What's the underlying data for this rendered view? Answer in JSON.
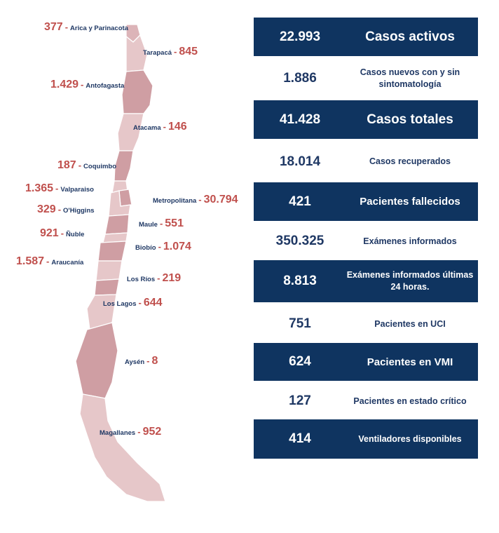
{
  "regions": [
    {
      "id": "arica",
      "name": "Arica y Parinacota",
      "value": "377",
      "side": "left"
    },
    {
      "id": "tarapaca",
      "name": "Tarapacá",
      "value": "845",
      "side": "right"
    },
    {
      "id": "antofagasta",
      "name": "Antofagasta",
      "value": "1.429",
      "side": "left"
    },
    {
      "id": "atacama",
      "name": "Atacama",
      "value": "146",
      "side": "right"
    },
    {
      "id": "coquimbo",
      "name": "Coquimbo",
      "value": "187",
      "side": "left"
    },
    {
      "id": "valparaiso",
      "name": "Valparaiso",
      "value": "1.365",
      "side": "left"
    },
    {
      "id": "metropolitana",
      "name": "Metropolitana",
      "value": "30.794",
      "side": "right"
    },
    {
      "id": "ohiggins",
      "name": "O'Higgins",
      "value": "329",
      "side": "left"
    },
    {
      "id": "maule",
      "name": "Maule",
      "value": "551",
      "side": "right"
    },
    {
      "id": "nuble",
      "name": "Ñuble",
      "value": "921",
      "side": "left"
    },
    {
      "id": "biobio",
      "name": "Biobío",
      "value": "1.074",
      "side": "right"
    },
    {
      "id": "araucania",
      "name": "Araucanía",
      "value": "1.587",
      "side": "left"
    },
    {
      "id": "losrios",
      "name": "Los Ríos",
      "value": "219",
      "side": "right"
    },
    {
      "id": "loslagos",
      "name": "Los Lagos",
      "value": "644",
      "side": "right"
    },
    {
      "id": "aysen",
      "name": "Aysén",
      "value": "8",
      "side": "right"
    },
    {
      "id": "magallanes",
      "name": "Magallanes",
      "value": "952",
      "side": "right"
    }
  ],
  "stats": [
    {
      "id": "casos-activos",
      "value": "22.993",
      "label": "Casos activos",
      "style": "dark",
      "size": "big"
    },
    {
      "id": "casos-nuevos",
      "value": "1.886",
      "label": "Casos nuevos con y sin sintomatología",
      "style": "light",
      "size": "sm"
    },
    {
      "id": "casos-totales",
      "value": "41.428",
      "label": "Casos totales",
      "style": "dark",
      "size": "big"
    },
    {
      "id": "casos-recuperados",
      "value": "18.014",
      "label": "Casos recuperados",
      "style": "light",
      "size": "sm"
    },
    {
      "id": "pacientes-fallecidos",
      "value": "421",
      "label": "Pacientes fallecidos",
      "style": "dark",
      "size": "mid"
    },
    {
      "id": "examenes-informados",
      "value": "350.325",
      "label": "Exámenes informados",
      "style": "light",
      "size": "sm"
    },
    {
      "id": "examenes-24h",
      "value": "8.813",
      "label": "Exámenes informados últimas 24 horas.",
      "style": "dark",
      "size": "sm"
    },
    {
      "id": "pacientes-uci",
      "value": "751",
      "label": "Pacientes en UCI",
      "style": "light",
      "size": "sm"
    },
    {
      "id": "pacientes-vmi",
      "value": "624",
      "label": "Pacientes en VMI",
      "style": "dark",
      "size": "mid"
    },
    {
      "id": "pacientes-critico",
      "value": "127",
      "label": "Pacientes en estado crítico",
      "style": "light",
      "size": "sm"
    },
    {
      "id": "ventiladores",
      "value": "414",
      "label": "Ventiladores disponibles",
      "style": "dark",
      "size": "sm"
    }
  ],
  "colors": {
    "dark_box": "#0f3460",
    "value_red": "#c0504d",
    "label_navy": "#1f3864",
    "map_fill": "#e6c7c9",
    "map_dark": "#cf9ea3",
    "map_stroke": "#ffffff"
  }
}
